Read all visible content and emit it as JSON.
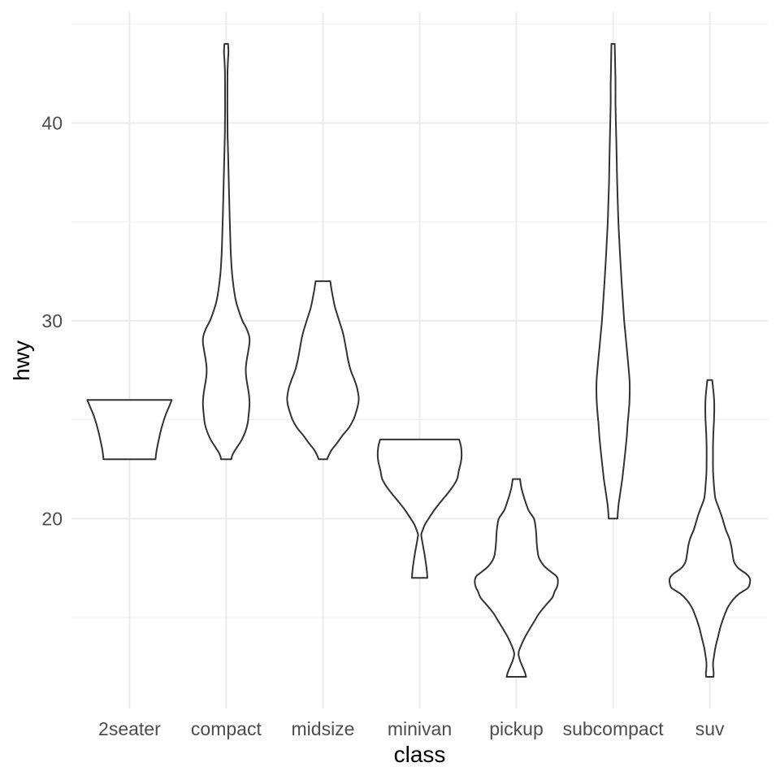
{
  "colors": {
    "background": "#FFFFFF",
    "violin_stroke": "#333333",
    "violin_fill": "#FFFFFF",
    "grid_major": "#EBEBEB",
    "grid_minor": "#F0F0F0",
    "tick_text": "#4D4D4D",
    "title_text": "#000000"
  },
  "chart_data": {
    "type": "violin",
    "title": "",
    "xlabel": "class",
    "ylabel": "hwy",
    "legend": false,
    "grid": true,
    "x_categories": [
      "2seater",
      "compact",
      "midsize",
      "minivan",
      "pickup",
      "subcompact",
      "suv"
    ],
    "x_axis": {
      "range": [
        0.4,
        7.6
      ],
      "positions": [
        1,
        2,
        3,
        4,
        5,
        6,
        7
      ]
    },
    "y_axis": {
      "major_ticks": [
        20,
        30,
        40
      ],
      "minor_ticks": [
        15,
        25,
        35,
        45
      ],
      "ylim": [
        10.4,
        45.6
      ]
    },
    "series": [
      {
        "category": "2seater",
        "hwy_min": 23,
        "hwy_max": 26,
        "profile": [
          [
            26,
            0.437
          ],
          [
            25.7,
            0.412
          ],
          [
            25.2,
            0.37
          ],
          [
            24.6,
            0.332
          ],
          [
            24,
            0.303
          ],
          [
            23.5,
            0.282
          ],
          [
            23.2,
            0.273
          ],
          [
            23,
            0.269
          ]
        ]
      },
      {
        "category": "compact",
        "hwy_min": 23,
        "hwy_max": 44,
        "profile": [
          [
            44,
            0.019
          ],
          [
            43.6,
            0.023
          ],
          [
            43.1,
            0.017
          ],
          [
            42.5,
            0.013
          ],
          [
            41.5,
            0.012
          ],
          [
            40.5,
            0.012
          ],
          [
            39.5,
            0.014
          ],
          [
            38.5,
            0.019
          ],
          [
            37.5,
            0.024
          ],
          [
            36.5,
            0.029
          ],
          [
            35.5,
            0.034
          ],
          [
            34.5,
            0.04
          ],
          [
            33.7,
            0.045
          ],
          [
            33,
            0.052
          ],
          [
            32.4,
            0.06
          ],
          [
            31.9,
            0.071
          ],
          [
            31.4,
            0.085
          ],
          [
            30.9,
            0.105
          ],
          [
            30.4,
            0.137
          ],
          [
            30,
            0.168
          ],
          [
            29.6,
            0.21
          ],
          [
            29.2,
            0.238
          ],
          [
            28.9,
            0.241
          ],
          [
            28.5,
            0.229
          ],
          [
            28.1,
            0.215
          ],
          [
            27.8,
            0.206
          ],
          [
            27.5,
            0.202
          ],
          [
            27.1,
            0.208
          ],
          [
            26.7,
            0.221
          ],
          [
            26.3,
            0.234
          ],
          [
            25.9,
            0.241
          ],
          [
            25.6,
            0.239
          ],
          [
            25.2,
            0.231
          ],
          [
            24.8,
            0.221
          ],
          [
            24.4,
            0.198
          ],
          [
            24,
            0.162
          ],
          [
            23.7,
            0.124
          ],
          [
            23.4,
            0.084
          ],
          [
            23.2,
            0.063
          ],
          [
            23,
            0.053
          ]
        ]
      },
      {
        "category": "midsize",
        "hwy_min": 23,
        "hwy_max": 32,
        "profile": [
          [
            32,
            0.076
          ],
          [
            31.6,
            0.088
          ],
          [
            31.2,
            0.103
          ],
          [
            30.7,
            0.124
          ],
          [
            30.2,
            0.155
          ],
          [
            29.8,
            0.181
          ],
          [
            29.4,
            0.206
          ],
          [
            29,
            0.224
          ],
          [
            28.5,
            0.242
          ],
          [
            28,
            0.261
          ],
          [
            27.5,
            0.287
          ],
          [
            27,
            0.326
          ],
          [
            26.6,
            0.353
          ],
          [
            26.2,
            0.368
          ],
          [
            26,
            0.37
          ],
          [
            25.7,
            0.361
          ],
          [
            25.3,
            0.337
          ],
          [
            25,
            0.315
          ],
          [
            24.6,
            0.269
          ],
          [
            24.2,
            0.202
          ],
          [
            23.8,
            0.143
          ],
          [
            23.5,
            0.094
          ],
          [
            23.2,
            0.06
          ],
          [
            23,
            0.044
          ]
        ]
      },
      {
        "category": "minivan",
        "hwy_min": 17,
        "hwy_max": 24,
        "profile": [
          [
            24,
            0.408
          ],
          [
            23.7,
            0.425
          ],
          [
            23.4,
            0.433
          ],
          [
            23.1,
            0.433
          ],
          [
            22.8,
            0.424
          ],
          [
            22.4,
            0.404
          ],
          [
            22,
            0.387
          ],
          [
            21.6,
            0.34
          ],
          [
            21.2,
            0.277
          ],
          [
            20.8,
            0.21
          ],
          [
            20.4,
            0.147
          ],
          [
            20,
            0.092
          ],
          [
            19.7,
            0.055
          ],
          [
            19.4,
            0.029
          ],
          [
            19.2,
            0.017
          ],
          [
            19,
            0.021
          ],
          [
            18.7,
            0.032
          ],
          [
            18.3,
            0.047
          ],
          [
            17.9,
            0.06
          ],
          [
            17.5,
            0.071
          ],
          [
            17.2,
            0.077
          ],
          [
            17,
            0.08
          ]
        ]
      },
      {
        "category": "pickup",
        "hwy_min": 12,
        "hwy_max": 22,
        "profile": [
          [
            22,
            0.038
          ],
          [
            21.6,
            0.05
          ],
          [
            21.2,
            0.071
          ],
          [
            20.8,
            0.097
          ],
          [
            20.4,
            0.128
          ],
          [
            20,
            0.181
          ],
          [
            19.6,
            0.198
          ],
          [
            19.2,
            0.206
          ],
          [
            18.8,
            0.21
          ],
          [
            18.4,
            0.218
          ],
          [
            18,
            0.235
          ],
          [
            17.6,
            0.288
          ],
          [
            17.3,
            0.36
          ],
          [
            17.1,
            0.412
          ],
          [
            16.9,
            0.429
          ],
          [
            16.6,
            0.424
          ],
          [
            16.3,
            0.395
          ],
          [
            16,
            0.37
          ],
          [
            15.6,
            0.3
          ],
          [
            15.2,
            0.235
          ],
          [
            14.8,
            0.185
          ],
          [
            14.4,
            0.135
          ],
          [
            14,
            0.088
          ],
          [
            13.6,
            0.05
          ],
          [
            13.3,
            0.027
          ],
          [
            13.1,
            0.023
          ],
          [
            12.8,
            0.04
          ],
          [
            12.5,
            0.065
          ],
          [
            12.2,
            0.09
          ],
          [
            12,
            0.101
          ]
        ]
      },
      {
        "category": "subcompact",
        "hwy_min": 20,
        "hwy_max": 44,
        "profile": [
          [
            44,
            0.017
          ],
          [
            43,
            0.021
          ],
          [
            42,
            0.025
          ],
          [
            41,
            0.025
          ],
          [
            40,
            0.029
          ],
          [
            39,
            0.034
          ],
          [
            38,
            0.038
          ],
          [
            37,
            0.042
          ],
          [
            36,
            0.048
          ],
          [
            35,
            0.055
          ],
          [
            34,
            0.065
          ],
          [
            33,
            0.076
          ],
          [
            32,
            0.088
          ],
          [
            31,
            0.101
          ],
          [
            30,
            0.115
          ],
          [
            29,
            0.134
          ],
          [
            28,
            0.153
          ],
          [
            27.3,
            0.166
          ],
          [
            26.8,
            0.172
          ],
          [
            26.3,
            0.172
          ],
          [
            25.8,
            0.168
          ],
          [
            25.3,
            0.16
          ],
          [
            24.8,
            0.151
          ],
          [
            24,
            0.139
          ],
          [
            23,
            0.118
          ],
          [
            22,
            0.095
          ],
          [
            21.3,
            0.074
          ],
          [
            20.7,
            0.057
          ],
          [
            20.3,
            0.049
          ],
          [
            20,
            0.046
          ]
        ]
      },
      {
        "category": "suv",
        "hwy_min": 12,
        "hwy_max": 27,
        "profile": [
          [
            27,
            0.025
          ],
          [
            26.6,
            0.034
          ],
          [
            26.2,
            0.042
          ],
          [
            25.8,
            0.046
          ],
          [
            25.4,
            0.046
          ],
          [
            25,
            0.044
          ],
          [
            24.6,
            0.04
          ],
          [
            24.2,
            0.036
          ],
          [
            23.6,
            0.033
          ],
          [
            23,
            0.033
          ],
          [
            22.4,
            0.034
          ],
          [
            21.9,
            0.04
          ],
          [
            21.4,
            0.048
          ],
          [
            21,
            0.059
          ],
          [
            20.6,
            0.088
          ],
          [
            20.2,
            0.118
          ],
          [
            19.8,
            0.143
          ],
          [
            19.4,
            0.168
          ],
          [
            19,
            0.202
          ],
          [
            18.6,
            0.223
          ],
          [
            18.2,
            0.235
          ],
          [
            17.8,
            0.252
          ],
          [
            17.5,
            0.294
          ],
          [
            17.2,
            0.378
          ],
          [
            17,
            0.412
          ],
          [
            16.8,
            0.416
          ],
          [
            16.5,
            0.395
          ],
          [
            16.2,
            0.303
          ],
          [
            15.9,
            0.24
          ],
          [
            15.5,
            0.185
          ],
          [
            15,
            0.143
          ],
          [
            14.5,
            0.109
          ],
          [
            14,
            0.084
          ],
          [
            13.5,
            0.059
          ],
          [
            13,
            0.042
          ],
          [
            12.7,
            0.034
          ],
          [
            12.4,
            0.036
          ],
          [
            12.2,
            0.04
          ],
          [
            12,
            0.038
          ]
        ]
      }
    ]
  }
}
